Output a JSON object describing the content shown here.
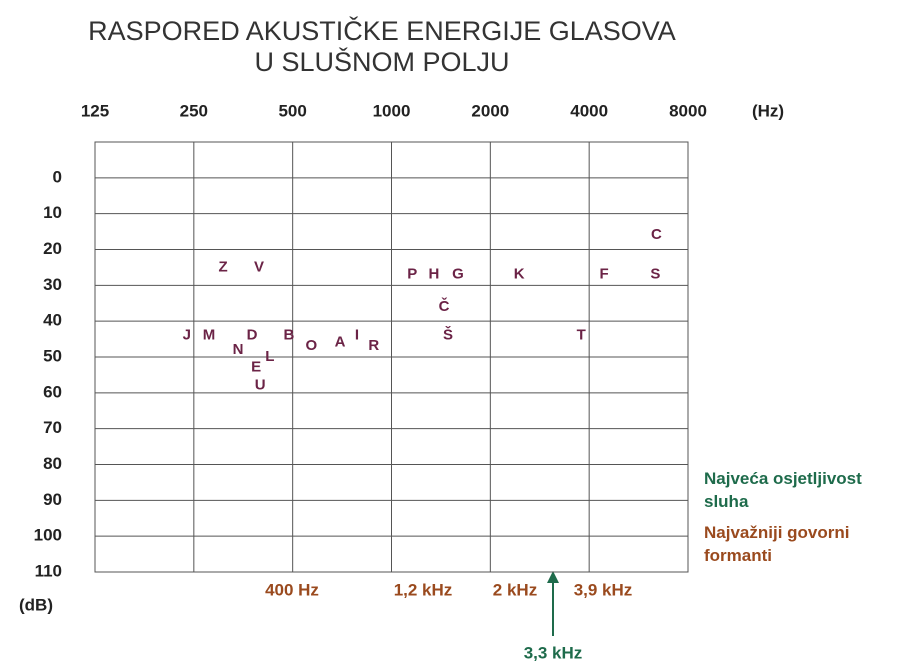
{
  "chart_data": {
    "type": "scatter",
    "title": [
      "RASPORED AKUSTIČKE ENERGIJE GLASOVA",
      "U SLUŠNOM POLJU"
    ],
    "x_axis_label": "(Hz)",
    "y_axis_label": "(dB)",
    "log_x": true,
    "y_inverted": true,
    "grid": true,
    "xlim": [
      125,
      8000
    ],
    "xticks": [
      125,
      250,
      500,
      1000,
      2000,
      4000,
      8000
    ],
    "ylim": [
      -10,
      110
    ],
    "yticks": [
      0,
      10,
      20,
      30,
      40,
      50,
      60,
      70,
      80,
      90,
      100,
      110
    ],
    "point_color": "#6b2346",
    "points": [
      {
        "label": "Z",
        "x": 307,
        "y": 25
      },
      {
        "label": "V",
        "x": 395,
        "y": 25
      },
      {
        "label": "J",
        "x": 238,
        "y": 44
      },
      {
        "label": "M",
        "x": 278,
        "y": 44
      },
      {
        "label": "D",
        "x": 376,
        "y": 44
      },
      {
        "label": "N",
        "x": 341,
        "y": 48
      },
      {
        "label": "E",
        "x": 387,
        "y": 53
      },
      {
        "label": "L",
        "x": 426,
        "y": 50
      },
      {
        "label": "U",
        "x": 398,
        "y": 58
      },
      {
        "label": "B",
        "x": 487,
        "y": 44
      },
      {
        "label": "O",
        "x": 570,
        "y": 47
      },
      {
        "label": "A",
        "x": 697,
        "y": 46
      },
      {
        "label": "I",
        "x": 785,
        "y": 44
      },
      {
        "label": "R",
        "x": 883,
        "y": 47
      },
      {
        "label": "P",
        "x": 1157,
        "y": 27
      },
      {
        "label": "H",
        "x": 1347,
        "y": 27
      },
      {
        "label": "G",
        "x": 1594,
        "y": 27
      },
      {
        "label": "Č",
        "x": 1446,
        "y": 36
      },
      {
        "label": "Š",
        "x": 1486,
        "y": 44
      },
      {
        "label": "K",
        "x": 2449,
        "y": 27
      },
      {
        "label": "T",
        "x": 3782,
        "y": 44
      },
      {
        "label": "F",
        "x": 4440,
        "y": 27
      },
      {
        "label": "S",
        "x": 6364,
        "y": 27
      },
      {
        "label": "C",
        "x": 6408,
        "y": 16
      }
    ],
    "annotations": [
      {
        "text": "400 Hz",
        "color": "#9a4a1e"
      },
      {
        "text": "1,2 kHz",
        "color": "#9a4a1e"
      },
      {
        "text": "2 kHz",
        "color": "#9a4a1e"
      },
      {
        "text": "3,9 kHz",
        "color": "#9a4a1e"
      },
      {
        "text": "3,3 kHz",
        "color": "#1e6b4b"
      }
    ],
    "legend": [
      {
        "text": "Najveća osjetljivost sluha",
        "color": "#1e6b4b"
      },
      {
        "text": "Najvažniji govorni formanti",
        "color": "#9a4a1e"
      }
    ]
  }
}
